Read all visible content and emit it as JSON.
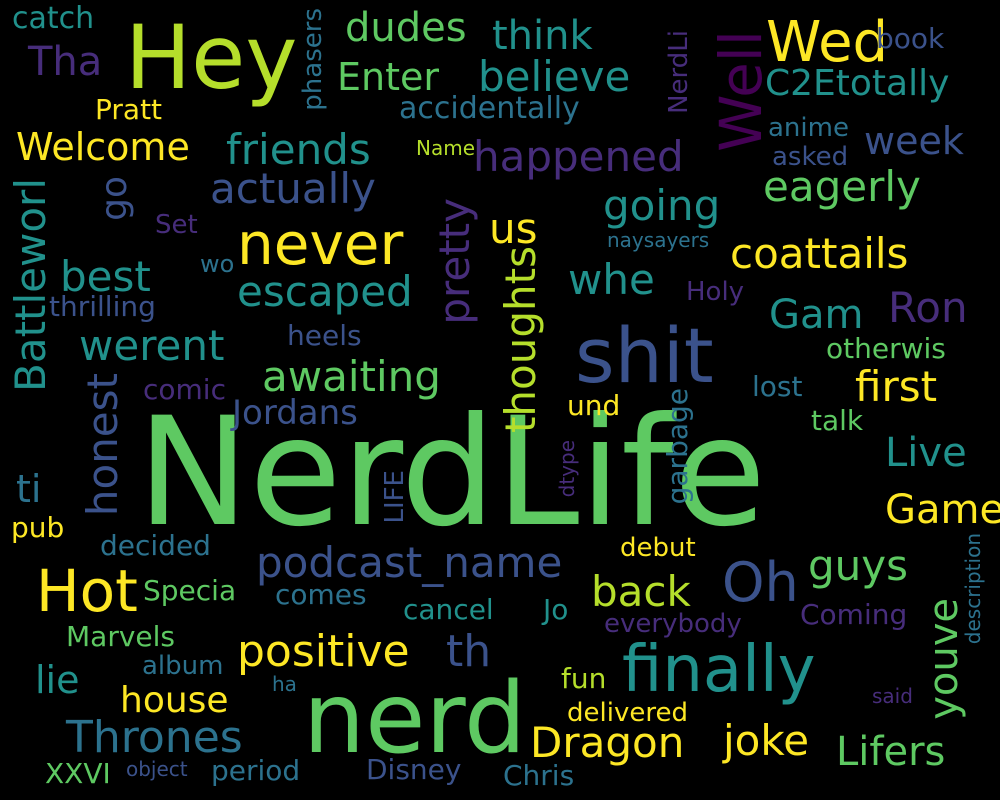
{
  "words": [
    {
      "text": "NerdLife",
      "color": "#5ec962"
    },
    {
      "text": "nerd",
      "color": "#5ec962"
    },
    {
      "text": "Hey",
      "color": "#b5de2b"
    },
    {
      "text": "shit",
      "color": "#3b528b"
    },
    {
      "text": "finally",
      "color": "#21918c"
    },
    {
      "text": "never",
      "color": "#fde725"
    },
    {
      "text": "Hot",
      "color": "#fde725"
    },
    {
      "text": "Oh",
      "color": "#3b528b"
    },
    {
      "text": "Wed",
      "color": "#fde725"
    },
    {
      "text": "Well",
      "color": "#440154"
    },
    {
      "text": "positive",
      "color": "#fde725"
    },
    {
      "text": "podcast_name",
      "color": "#3b528b"
    },
    {
      "text": "Thrones",
      "color": "#2c728e"
    },
    {
      "text": "Dragon",
      "color": "#fde725"
    },
    {
      "text": "joke",
      "color": "#fde725"
    },
    {
      "text": "Lifers",
      "color": "#5ec962"
    },
    {
      "text": "pretty",
      "color": "#472d7b"
    },
    {
      "text": "youve",
      "color": "#5ec962"
    },
    {
      "text": "happened",
      "color": "#472d7b"
    },
    {
      "text": "awaiting",
      "color": "#5ec962"
    },
    {
      "text": "escaped",
      "color": "#21918c"
    },
    {
      "text": "actually",
      "color": "#3b528b"
    },
    {
      "text": "friends",
      "color": "#21918c"
    },
    {
      "text": "believe",
      "color": "#21918c"
    },
    {
      "text": "coattails",
      "color": "#fde725"
    },
    {
      "text": "going",
      "color": "#21918c"
    },
    {
      "text": "eagerly",
      "color": "#5ec962"
    },
    {
      "text": "first",
      "color": "#fde725"
    },
    {
      "text": "Ron",
      "color": "#472d7b"
    },
    {
      "text": "Gam",
      "color": "#21918c"
    },
    {
      "text": "Game",
      "color": "#fde725"
    },
    {
      "text": "Live",
      "color": "#21918c"
    },
    {
      "text": "guys",
      "color": "#5ec962"
    },
    {
      "text": "back",
      "color": "#b5de2b"
    },
    {
      "text": "th",
      "color": "#3b528b"
    },
    {
      "text": "whe",
      "color": "#21918c"
    },
    {
      "text": "us",
      "color": "#fde725"
    },
    {
      "text": "thoughts",
      "color": "#b5de2b"
    },
    {
      "text": "Battleworl",
      "color": "#21918c"
    },
    {
      "text": "honest",
      "color": "#3b528b"
    },
    {
      "text": "werent",
      "color": "#21918c"
    },
    {
      "text": "best",
      "color": "#21918c"
    },
    {
      "text": "Jordans",
      "color": "#3b528b"
    },
    {
      "text": "think",
      "color": "#21918c"
    },
    {
      "text": "dudes",
      "color": "#5ec962"
    },
    {
      "text": "Enter",
      "color": "#5ec962"
    },
    {
      "text": "Welcome",
      "color": "#fde725"
    },
    {
      "text": "Tha",
      "color": "#472d7b"
    },
    {
      "text": "house",
      "color": "#fde725"
    },
    {
      "text": "lie",
      "color": "#21918c"
    },
    {
      "text": "go",
      "color": "#3b528b"
    },
    {
      "text": "C2Etotally",
      "color": "#21918c"
    },
    {
      "text": "week",
      "color": "#3b528b"
    },
    {
      "text": "accidentally",
      "color": "#2c728e"
    },
    {
      "text": "catch",
      "color": "#21918c"
    },
    {
      "text": "Pratt",
      "color": "#fde725"
    },
    {
      "text": "phasers",
      "color": "#2c728e"
    },
    {
      "text": "NerdLi",
      "color": "#472d7b"
    },
    {
      "text": "book",
      "color": "#3b528b"
    },
    {
      "text": "anime",
      "color": "#2c728e"
    },
    {
      "text": "asked",
      "color": "#3b528b"
    },
    {
      "text": "Name",
      "color": "#b5de2b"
    },
    {
      "text": "Set",
      "color": "#472d7b"
    },
    {
      "text": "naysayers",
      "color": "#2c728e"
    },
    {
      "text": "wo",
      "color": "#2c728e"
    },
    {
      "text": "Holy",
      "color": "#472d7b"
    },
    {
      "text": "thrilling",
      "color": "#3b528b"
    },
    {
      "text": "heels",
      "color": "#3b528b"
    },
    {
      "text": "otherwis",
      "color": "#5ec962"
    },
    {
      "text": "comic",
      "color": "#472d7b"
    },
    {
      "text": "lost",
      "color": "#2c728e"
    },
    {
      "text": "und",
      "color": "#fde725"
    },
    {
      "text": "talk",
      "color": "#5ec962"
    },
    {
      "text": "garbage",
      "color": "#2c728e"
    },
    {
      "text": "dtype",
      "color": "#472d7b"
    },
    {
      "text": "LIFE",
      "color": "#3b528b"
    },
    {
      "text": "ti",
      "color": "#2c728e"
    },
    {
      "text": "pub",
      "color": "#fde725"
    },
    {
      "text": "decided",
      "color": "#2c728e"
    },
    {
      "text": "debut",
      "color": "#fde725"
    },
    {
      "text": "description",
      "color": "#2c728e"
    },
    {
      "text": "Specia",
      "color": "#5ec962"
    },
    {
      "text": "comes",
      "color": "#2c728e"
    },
    {
      "text": "cancel",
      "color": "#21918c"
    },
    {
      "text": "Jo",
      "color": "#21918c"
    },
    {
      "text": "Coming",
      "color": "#472d7b"
    },
    {
      "text": "everybody",
      "color": "#472d7b"
    },
    {
      "text": "Marvels",
      "color": "#5ec962"
    },
    {
      "text": "album",
      "color": "#2c728e"
    },
    {
      "text": "ha",
      "color": "#2c728e"
    },
    {
      "text": "fun",
      "color": "#b5de2b"
    },
    {
      "text": "said",
      "color": "#472d7b"
    },
    {
      "text": "delivered",
      "color": "#fde725"
    },
    {
      "text": "XXVI",
      "color": "#5ec962"
    },
    {
      "text": "object",
      "color": "#3b528b"
    },
    {
      "text": "period",
      "color": "#2c728e"
    },
    {
      "text": "Disney",
      "color": "#3b528b"
    },
    {
      "text": "Chris",
      "color": "#2c728e"
    }
  ]
}
